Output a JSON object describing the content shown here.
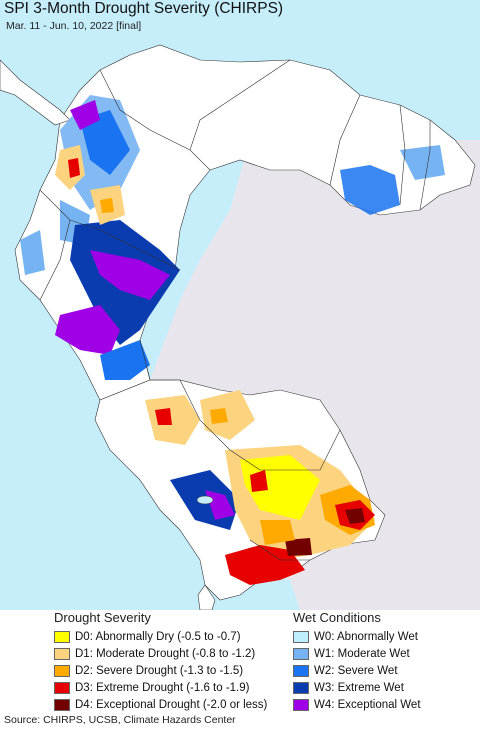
{
  "title": "SPI 3-Month Drought Severity (CHIRPS)",
  "subtitle": "Mar. 11 - Jun. 10, 2022 [final]",
  "colors": {
    "ocean": "#c6eefa",
    "land": "#ffffff",
    "outside": "#e8e6ec",
    "D0": "#ffff00",
    "D1": "#fcd37f",
    "D2": "#ffaa00",
    "D3": "#e60000",
    "D4": "#730000",
    "W0": "#bfeffd",
    "W1": "#75b3f3",
    "W2": "#1a73f0",
    "W3": "#0a3cb0",
    "W4": "#a000e6"
  },
  "legend": {
    "drought": {
      "heading": "Drought Severity",
      "items": [
        {
          "code": "D0",
          "label": "D0: Abnormally Dry (-0.5 to -0.7)"
        },
        {
          "code": "D1",
          "label": "D1: Moderate Drought (-0.8 to -1.2)"
        },
        {
          "code": "D2",
          "label": "D2: Severe Drought (-1.3 to -1.5)"
        },
        {
          "code": "D3",
          "label": "D3: Extreme Drought (-1.6 to -1.9)"
        },
        {
          "code": "D4",
          "label": "D4: Exceptional Drought (-2.0 or less)"
        }
      ]
    },
    "wet": {
      "heading": "Wet Conditions",
      "items": [
        {
          "code": "W0",
          "label": "W0: Abnormally Wet"
        },
        {
          "code": "W1",
          "label": "W1: Moderate Wet"
        },
        {
          "code": "W2",
          "label": "W2: Severe Wet"
        },
        {
          "code": "W3",
          "label": "W3: Extreme Wet"
        },
        {
          "code": "W4",
          "label": "W4: Exceptional Wet"
        }
      ]
    }
  },
  "footer": "Source: CHIRPS, UCSB, Climate Hazards Center"
}
